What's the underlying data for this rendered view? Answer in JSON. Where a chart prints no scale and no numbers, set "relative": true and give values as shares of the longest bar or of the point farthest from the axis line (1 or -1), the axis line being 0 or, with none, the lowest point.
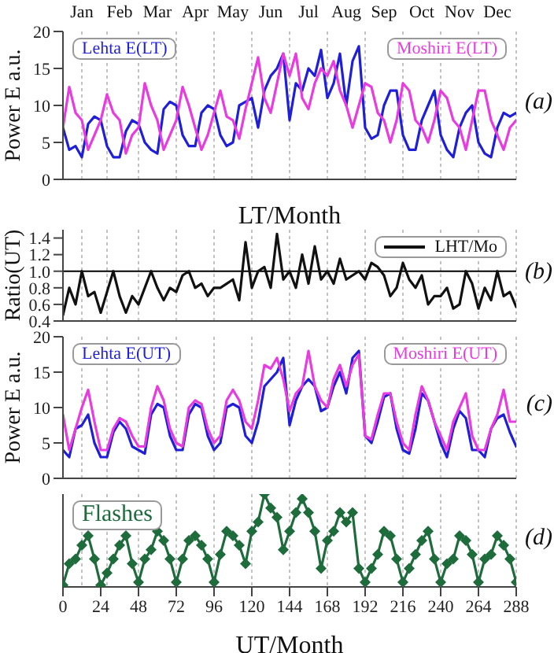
{
  "chart_data": [
    {
      "type": "line",
      "xlabel": "LT/Month",
      "ylabel": "Power E a.u.",
      "xlim": [
        0,
        288
      ],
      "ylim": [
        0,
        20
      ],
      "yticks": [
        0,
        5,
        10,
        15,
        20
      ],
      "tick_labels": "y",
      "xticks": [
        0,
        24,
        48,
        72,
        96,
        120,
        144,
        168,
        192,
        216,
        240,
        264,
        288
      ],
      "grid": "x",
      "marker": "none",
      "line_style": "solid",
      "annotations": [
        "Jan",
        "Feb",
        "Mar",
        "Apr",
        "May",
        "Jun",
        "Jul",
        "Aug",
        "Sep",
        "Oct",
        "Nov",
        "Dec",
        "(a)"
      ],
      "x": [
        0,
        4,
        8,
        12,
        16,
        20,
        24,
        28,
        32,
        36,
        40,
        44,
        48,
        52,
        56,
        60,
        64,
        68,
        72,
        76,
        80,
        84,
        88,
        92,
        96,
        100,
        104,
        108,
        112,
        116,
        120,
        124,
        128,
        132,
        136,
        140,
        144,
        148,
        152,
        156,
        160,
        164,
        168,
        172,
        176,
        180,
        184,
        188,
        192,
        196,
        200,
        204,
        208,
        212,
        216,
        220,
        224,
        228,
        232,
        236,
        240,
        244,
        248,
        252,
        256,
        260,
        264,
        268,
        272,
        276,
        280,
        284,
        288
      ],
      "series": [
        {
          "name": "Lehta E(LT)",
          "color": "#1f1fd8",
          "values": [
            7,
            4,
            4.5,
            3,
            7.5,
            8.5,
            8,
            4.5,
            3,
            3,
            6.5,
            8,
            7.5,
            5,
            4,
            3.5,
            9.5,
            10.5,
            10,
            6,
            4.5,
            4.5,
            9,
            10,
            9.5,
            6,
            4.5,
            5,
            10,
            10.5,
            11,
            7,
            12,
            14,
            15,
            17,
            8,
            13,
            12,
            15,
            14,
            17.5,
            11,
            13,
            17,
            10,
            16,
            18,
            7,
            5.5,
            6,
            10,
            12,
            12,
            6,
            4,
            4,
            8,
            10,
            12,
            6,
            4,
            3,
            7,
            9,
            10,
            5,
            3.5,
            3,
            7,
            9,
            8.5,
            9
          ]
        },
        {
          "name": "Moshiri E(LT)",
          "color": "#e83ce0",
          "values": [
            7,
            12.5,
            9,
            8,
            4,
            6,
            8,
            11.5,
            9,
            8,
            3.5,
            6,
            7,
            13,
            10,
            8,
            4,
            6,
            8,
            12.5,
            10,
            7,
            4,
            6,
            9,
            12,
            8.5,
            8,
            5.5,
            9.5,
            13,
            16.5,
            11,
            9,
            13,
            17,
            14,
            17,
            11,
            9.5,
            13,
            15,
            14,
            16,
            12,
            10,
            7,
            10,
            13,
            12.5,
            9,
            8,
            5,
            8,
            13,
            12,
            8,
            7,
            5,
            8,
            12,
            11,
            8,
            7,
            4,
            8,
            12,
            12,
            8,
            6,
            4,
            7,
            8
          ]
        }
      ]
    },
    {
      "type": "line",
      "ylabel": "Ratio(UT)",
      "xlim": [
        0,
        288
      ],
      "ylim": [
        0.4,
        1.5
      ],
      "yticks": [
        {
          "value": 0.4,
          "label": "0.4"
        },
        {
          "value": 0.6,
          "label": "0.6"
        },
        {
          "value": 0.8,
          "label": "0.8"
        },
        {
          "value": 1.0,
          "label": "1.0"
        },
        {
          "value": 1.2,
          "label": "1.2"
        },
        {
          "value": 1.4,
          "label": "1.4"
        }
      ],
      "tick_labels": "y",
      "xticks": [
        0,
        24,
        48,
        72,
        96,
        120,
        144,
        168,
        192,
        216,
        240,
        264,
        288
      ],
      "grid": "x",
      "legend": "top right",
      "marker": "none",
      "line_style": "solid",
      "annotations": [
        "(b)"
      ],
      "ref_lines": [
        {
          "axis": "y",
          "value": 1.0,
          "color": "#000000"
        }
      ],
      "x": [
        0,
        4,
        8,
        12,
        16,
        20,
        24,
        28,
        32,
        36,
        40,
        44,
        48,
        52,
        56,
        60,
        64,
        68,
        72,
        76,
        80,
        84,
        88,
        92,
        96,
        100,
        104,
        108,
        112,
        116,
        120,
        124,
        128,
        132,
        136,
        140,
        144,
        148,
        152,
        156,
        160,
        164,
        168,
        172,
        176,
        180,
        184,
        188,
        192,
        196,
        200,
        204,
        208,
        212,
        216,
        220,
        224,
        228,
        232,
        236,
        240,
        244,
        248,
        252,
        256,
        260,
        264,
        268,
        272,
        276,
        280,
        284,
        288
      ],
      "series": [
        {
          "name": "LHT/Mo",
          "color": "#111111",
          "values": [
            0.47,
            0.8,
            0.6,
            1.0,
            0.7,
            0.75,
            0.5,
            0.75,
            1.0,
            0.7,
            0.5,
            0.7,
            0.6,
            0.8,
            1.0,
            0.8,
            0.65,
            0.8,
            0.75,
            0.95,
            1.0,
            0.8,
            0.85,
            0.7,
            0.8,
            0.8,
            0.85,
            0.9,
            0.65,
            1.35,
            0.8,
            1.0,
            1.05,
            0.8,
            1.45,
            0.9,
            1.0,
            0.8,
            1.2,
            0.85,
            1.3,
            0.9,
            1.0,
            0.85,
            1.15,
            0.9,
            0.95,
            1.0,
            0.9,
            1.1,
            1.05,
            0.95,
            0.7,
            0.8,
            1.1,
            0.9,
            0.8,
            0.95,
            0.6,
            0.7,
            0.7,
            0.8,
            0.55,
            0.6,
            1.0,
            0.85,
            0.55,
            0.8,
            0.65,
            1.0,
            0.7,
            0.75,
            0.57
          ]
        }
      ]
    },
    {
      "type": "line",
      "ylabel": "Power E a.u.",
      "xlim": [
        0,
        288
      ],
      "ylim": [
        0,
        20
      ],
      "yticks": [
        0,
        5,
        10,
        15,
        20
      ],
      "tick_labels": "y",
      "xticks": [
        0,
        24,
        48,
        72,
        96,
        120,
        144,
        168,
        192,
        216,
        240,
        264,
        288
      ],
      "grid": "x",
      "marker": "none",
      "line_style": "solid",
      "annotations": [
        "(c)"
      ],
      "x": [
        0,
        4,
        8,
        12,
        16,
        20,
        24,
        28,
        32,
        36,
        40,
        44,
        48,
        52,
        56,
        60,
        64,
        68,
        72,
        76,
        80,
        84,
        88,
        92,
        96,
        100,
        104,
        108,
        112,
        116,
        120,
        124,
        128,
        132,
        136,
        140,
        144,
        148,
        152,
        156,
        160,
        164,
        168,
        172,
        176,
        180,
        184,
        188,
        192,
        196,
        200,
        204,
        208,
        212,
        216,
        220,
        224,
        228,
        232,
        236,
        240,
        244,
        248,
        252,
        256,
        260,
        264,
        268,
        272,
        276,
        280,
        284,
        288
      ],
      "series": [
        {
          "name": "Lehta E(UT)",
          "color": "#1f1fd8",
          "values": [
            4,
            3,
            7,
            7.5,
            9,
            5,
            3,
            3,
            6.5,
            8,
            7,
            4.5,
            4,
            3.5,
            9,
            10.5,
            10,
            6,
            4,
            4,
            9,
            10.5,
            10,
            6,
            4,
            5,
            10,
            10.5,
            10,
            6,
            5,
            8,
            13,
            14,
            15,
            17,
            7.5,
            11,
            13,
            14,
            13,
            9.5,
            10,
            13,
            15,
            12,
            17,
            18,
            6,
            5,
            8,
            11.5,
            12,
            7,
            4,
            3.5,
            7,
            12,
            11,
            8,
            5,
            3,
            7,
            9.5,
            8.5,
            4,
            4,
            3,
            7,
            8.5,
            9,
            6.5,
            4.5
          ]
        },
        {
          "name": "Moshiri E(UT)",
          "color": "#e83ce0",
          "values": [
            9,
            4,
            7,
            10,
            12.5,
            8,
            4,
            4,
            7,
            8.5,
            8,
            6,
            4.5,
            4.5,
            10,
            13,
            11,
            7,
            5,
            4.5,
            10,
            11,
            10.5,
            7,
            5,
            6,
            11,
            12.5,
            11,
            8,
            7,
            11,
            16,
            15.5,
            17,
            14,
            9.5,
            12,
            13,
            18,
            13,
            11,
            10,
            14,
            16,
            13,
            16,
            17.5,
            6,
            5.5,
            9,
            12,
            12,
            8,
            5,
            4,
            9,
            13,
            11,
            8,
            6,
            4,
            8,
            10,
            12,
            6,
            4,
            4,
            7,
            9,
            12.5,
            8,
            8
          ]
        }
      ]
    },
    {
      "type": "line",
      "xlabel": "UT/Month",
      "relative": true,
      "xlim": [
        0,
        288
      ],
      "xticks": [
        0,
        24,
        48,
        72,
        96,
        120,
        144,
        168,
        192,
        216,
        240,
        264,
        288
      ],
      "grid": "x",
      "marker": "diamond",
      "line_style": "solid",
      "annotations": [
        "(d)"
      ],
      "x": [
        0,
        4,
        8,
        12,
        16,
        20,
        24,
        28,
        32,
        36,
        40,
        44,
        48,
        52,
        56,
        60,
        64,
        68,
        72,
        76,
        80,
        84,
        88,
        92,
        96,
        100,
        104,
        108,
        112,
        116,
        120,
        124,
        128,
        132,
        136,
        140,
        144,
        148,
        152,
        156,
        160,
        164,
        168,
        172,
        176,
        180,
        184,
        188,
        192,
        196,
        200,
        204,
        208,
        212,
        216,
        220,
        224,
        228,
        232,
        236,
        240,
        244,
        248,
        252,
        256,
        260,
        264,
        268,
        272,
        276,
        280,
        284,
        288
      ],
      "series": [
        {
          "name": "Flashes",
          "color": "#1e6b3c",
          "values": [
            0.02,
            0.25,
            0.3,
            0.45,
            0.55,
            0.3,
            0.02,
            0.15,
            0.3,
            0.45,
            0.55,
            0.25,
            0.05,
            0.3,
            0.4,
            0.6,
            0.5,
            0.3,
            0.05,
            0.3,
            0.5,
            0.55,
            0.45,
            0.3,
            0.05,
            0.35,
            0.6,
            0.55,
            0.45,
            0.25,
            0.6,
            0.7,
            1.0,
            0.85,
            0.75,
            0.4,
            0.6,
            0.8,
            0.95,
            0.8,
            0.6,
            0.2,
            0.5,
            0.6,
            0.8,
            0.7,
            0.8,
            0.2,
            0.05,
            0.2,
            0.35,
            0.6,
            0.55,
            0.3,
            0.05,
            0.2,
            0.35,
            0.5,
            0.6,
            0.3,
            0.05,
            0.25,
            0.3,
            0.55,
            0.5,
            0.35,
            0.05,
            0.3,
            0.35,
            0.55,
            0.45,
            0.3,
            0.05
          ]
        }
      ]
    }
  ]
}
